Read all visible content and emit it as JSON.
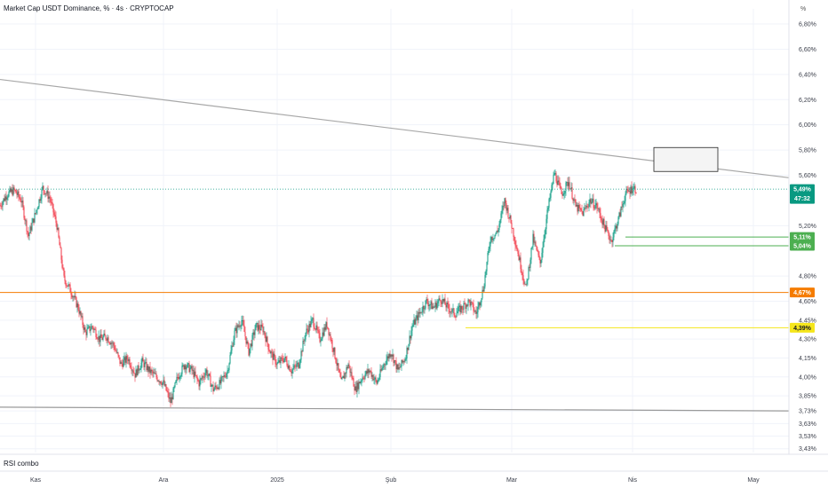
{
  "header": {
    "title": "Market Cap USDT Dominance, % · 4s · CRYPTOCAP",
    "unit_label": "%"
  },
  "indicator_label": "RSI combo",
  "chart_data": {
    "type": "candlestick",
    "y_axis": {
      "unit": "%",
      "range": [
        3.4,
        6.92
      ],
      "ticks": [
        "6,80%",
        "6,60%",
        "6,40%",
        "6,20%",
        "6,00%",
        "5,80%",
        "5,60%",
        "5,20%",
        "4,80%",
        "4,60%",
        "4,45%",
        "4,30%",
        "4,15%",
        "4,00%",
        "3,85%",
        "3,73%",
        "3,63%",
        "3,53%",
        "3,43%"
      ],
      "tick_values": [
        6.8,
        6.6,
        6.4,
        6.2,
        6.0,
        5.8,
        5.6,
        5.2,
        4.8,
        4.6,
        4.45,
        4.3,
        4.15,
        4.0,
        3.85,
        3.73,
        3.63,
        3.53,
        3.43
      ]
    },
    "x_axis": {
      "labels": [
        "Kas",
        "Ara",
        "2025",
        "Şub",
        "Mar",
        "Nis",
        "May"
      ],
      "label_index": [
        5,
        23,
        39,
        55,
        72,
        89,
        106
      ],
      "last_index": 89.5,
      "total_span": [
        0,
        111
      ]
    },
    "price_path": [
      [
        0,
        5.36
      ],
      [
        1,
        5.45
      ],
      [
        2,
        5.48
      ],
      [
        3,
        5.4
      ],
      [
        4,
        5.12
      ],
      [
        5,
        5.3
      ],
      [
        6,
        5.5
      ],
      [
        7,
        5.42
      ],
      [
        8,
        5.2
      ],
      [
        9,
        4.78
      ],
      [
        10,
        4.68
      ],
      [
        11,
        4.55
      ],
      [
        12,
        4.35
      ],
      [
        13,
        4.4
      ],
      [
        14,
        4.3
      ],
      [
        15,
        4.32
      ],
      [
        16,
        4.25
      ],
      [
        17,
        4.1
      ],
      [
        18,
        4.15
      ],
      [
        19,
        4.02
      ],
      [
        20,
        4.12
      ],
      [
        21,
        4.05
      ],
      [
        22,
        4.0
      ],
      [
        23,
        3.95
      ],
      [
        24,
        3.8
      ],
      [
        25,
        4.0
      ],
      [
        26,
        4.1
      ],
      [
        27,
        4.05
      ],
      [
        28,
        3.95
      ],
      [
        29,
        4.05
      ],
      [
        30,
        3.9
      ],
      [
        31,
        3.95
      ],
      [
        32,
        4.05
      ],
      [
        33,
        4.35
      ],
      [
        34,
        4.45
      ],
      [
        35,
        4.2
      ],
      [
        36,
        4.4
      ],
      [
        37,
        4.38
      ],
      [
        38,
        4.2
      ],
      [
        39,
        4.1
      ],
      [
        40,
        4.15
      ],
      [
        41,
        4.05
      ],
      [
        42,
        4.1
      ],
      [
        43,
        4.35
      ],
      [
        44,
        4.45
      ],
      [
        45,
        4.3
      ],
      [
        46,
        4.42
      ],
      [
        47,
        4.2
      ],
      [
        48,
        3.95
      ],
      [
        49,
        4.1
      ],
      [
        50,
        3.9
      ],
      [
        51,
        4.0
      ],
      [
        52,
        4.05
      ],
      [
        53,
        3.95
      ],
      [
        54,
        4.1
      ],
      [
        55,
        4.2
      ],
      [
        56,
        4.05
      ],
      [
        57,
        4.15
      ],
      [
        58,
        4.4
      ],
      [
        59,
        4.5
      ],
      [
        60,
        4.6
      ],
      [
        61,
        4.55
      ],
      [
        62,
        4.62
      ],
      [
        63,
        4.55
      ],
      [
        64,
        4.5
      ],
      [
        65,
        4.55
      ],
      [
        66,
        4.6
      ],
      [
        67,
        4.5
      ],
      [
        68,
        4.7
      ],
      [
        69,
        5.1
      ],
      [
        70,
        5.15
      ],
      [
        71,
        5.4
      ],
      [
        72,
        5.2
      ],
      [
        73,
        4.95
      ],
      [
        74,
        4.7
      ],
      [
        75,
        5.1
      ],
      [
        76,
        4.9
      ],
      [
        77,
        5.3
      ],
      [
        78,
        5.62
      ],
      [
        79,
        5.45
      ],
      [
        80,
        5.55
      ],
      [
        81,
        5.35
      ],
      [
        82,
        5.3
      ],
      [
        83,
        5.4
      ],
      [
        84,
        5.35
      ],
      [
        85,
        5.2
      ],
      [
        86,
        5.08
      ],
      [
        87,
        5.25
      ],
      [
        88,
        5.45
      ],
      [
        89,
        5.5
      ],
      [
        89.5,
        5.49
      ]
    ]
  },
  "annotations": {
    "resistance_line": {
      "from": [
        0,
        6.36
      ],
      "to": [
        111,
        5.58
      ]
    },
    "support_line": {
      "from": [
        0,
        3.76
      ],
      "to": [
        111,
        3.73
      ]
    },
    "target_box": {
      "x1": 92,
      "x2": 101,
      "y1": 5.82,
      "y2": 5.63
    },
    "horizontal_levels": [
      {
        "name": "current",
        "value": 5.49,
        "label": "5,49%",
        "sublabel": "47:32",
        "color": "#089981",
        "style": "dotted",
        "from_index": 0
      },
      {
        "name": "level-511",
        "value": 5.11,
        "label": "5,11%",
        "color": "#4caf50",
        "style": "solid",
        "from_index": 88
      },
      {
        "name": "level-504",
        "value": 5.04,
        "label": "5,04%",
        "color": "#4caf50",
        "style": "solid",
        "from_index": 86.5
      },
      {
        "name": "level-467",
        "value": 4.67,
        "label": "4,67%",
        "color": "#f57c00",
        "style": "solid",
        "from_index": 0
      },
      {
        "name": "level-439",
        "value": 4.39,
        "label": "4,39%",
        "color": "#f5e61b",
        "style": "solid",
        "from_index": 65.5
      }
    ]
  },
  "colors": {
    "up": "#089981",
    "down": "#f23645",
    "trendline": "#a8a8a8",
    "grid": "#f0f3fa"
  }
}
